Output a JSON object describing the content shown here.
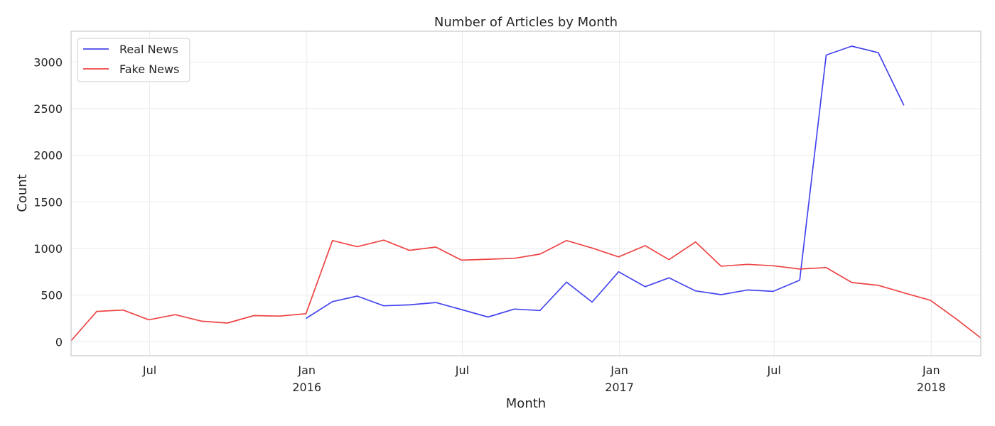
{
  "chart_data": {
    "type": "line",
    "title": "Number of Articles by Month",
    "xlabel": "Month",
    "ylabel": "Count",
    "xlim": [
      "2015-03-31",
      "2018-02-28"
    ],
    "ylim": [
      -150,
      3330
    ],
    "grid": true,
    "legend_position": "top-left",
    "x_ticks": [
      {
        "date": "2015-07-01",
        "label": "Jul",
        "sublabel": ""
      },
      {
        "date": "2016-01-01",
        "label": "Jan",
        "sublabel": "2016"
      },
      {
        "date": "2016-07-01",
        "label": "Jul",
        "sublabel": ""
      },
      {
        "date": "2017-01-01",
        "label": "Jan",
        "sublabel": "2017"
      },
      {
        "date": "2017-07-01",
        "label": "Jul",
        "sublabel": ""
      },
      {
        "date": "2018-01-01",
        "label": "Jan",
        "sublabel": "2018"
      }
    ],
    "y_ticks": [
      0,
      500,
      1000,
      1500,
      2000,
      2500,
      3000
    ],
    "series": [
      {
        "name": "Real News",
        "color": "#4444ee",
        "points": [
          [
            "2015-12-31",
            250
          ],
          [
            "2016-01-31",
            430
          ],
          [
            "2016-02-29",
            490
          ],
          [
            "2016-03-31",
            385
          ],
          [
            "2016-04-30",
            395
          ],
          [
            "2016-05-31",
            420
          ],
          [
            "2016-06-30",
            345
          ],
          [
            "2016-07-31",
            265
          ],
          [
            "2016-08-31",
            350
          ],
          [
            "2016-09-30",
            335
          ],
          [
            "2016-10-31",
            640
          ],
          [
            "2016-11-30",
            425
          ],
          [
            "2016-12-31",
            750
          ],
          [
            "2017-01-31",
            590
          ],
          [
            "2017-02-28",
            685
          ],
          [
            "2017-03-31",
            545
          ],
          [
            "2017-04-30",
            505
          ],
          [
            "2017-05-31",
            555
          ],
          [
            "2017-06-30",
            540
          ],
          [
            "2017-07-31",
            660
          ],
          [
            "2017-08-31",
            3075
          ],
          [
            "2017-09-30",
            3170
          ],
          [
            "2017-10-31",
            3100
          ],
          [
            "2017-11-30",
            2535
          ]
        ]
      },
      {
        "name": "Fake News",
        "color": "#ee4444",
        "points": [
          [
            "2015-03-31",
            10
          ],
          [
            "2015-04-30",
            325
          ],
          [
            "2015-05-31",
            340
          ],
          [
            "2015-06-30",
            235
          ],
          [
            "2015-07-31",
            290
          ],
          [
            "2015-08-31",
            220
          ],
          [
            "2015-09-30",
            200
          ],
          [
            "2015-10-31",
            280
          ],
          [
            "2015-11-30",
            275
          ],
          [
            "2015-12-31",
            300
          ],
          [
            "2016-01-31",
            1085
          ],
          [
            "2016-02-29",
            1020
          ],
          [
            "2016-03-31",
            1090
          ],
          [
            "2016-04-30",
            980
          ],
          [
            "2016-05-31",
            1015
          ],
          [
            "2016-06-30",
            875
          ],
          [
            "2016-07-31",
            885
          ],
          [
            "2016-08-31",
            895
          ],
          [
            "2016-09-30",
            940
          ],
          [
            "2016-10-31",
            1085
          ],
          [
            "2016-11-30",
            1005
          ],
          [
            "2016-12-31",
            910
          ],
          [
            "2017-01-31",
            1030
          ],
          [
            "2017-02-28",
            880
          ],
          [
            "2017-03-31",
            1070
          ],
          [
            "2017-04-30",
            810
          ],
          [
            "2017-05-31",
            830
          ],
          [
            "2017-06-30",
            815
          ],
          [
            "2017-07-31",
            780
          ],
          [
            "2017-08-31",
            795
          ],
          [
            "2017-09-30",
            635
          ],
          [
            "2017-10-31",
            605
          ],
          [
            "2017-11-30",
            525
          ],
          [
            "2017-12-31",
            445
          ],
          [
            "2018-01-31",
            240
          ],
          [
            "2018-02-28",
            40
          ]
        ]
      }
    ]
  }
}
